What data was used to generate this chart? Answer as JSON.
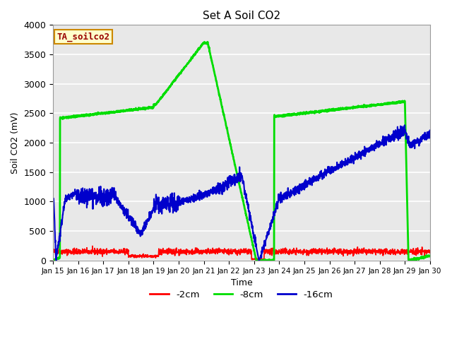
{
  "title": "Set A Soil CO2",
  "xlabel": "Time",
  "ylabel": "Soil CO2 (mV)",
  "ylim": [
    0,
    4000
  ],
  "xlim": [
    0,
    15
  ],
  "xtick_labels": [
    "Jan 15",
    "Jan 16",
    "Jan 17",
    "Jan 18",
    "Jan 19",
    "Jan 20",
    "Jan 21",
    "Jan 22",
    "Jan 23",
    "Jan 24",
    "Jan 25",
    "Jan 26",
    "Jan 27",
    "Jan 28",
    "Jan 29",
    "Jan 30"
  ],
  "ytick_values": [
    0,
    500,
    1000,
    1500,
    2000,
    2500,
    3000,
    3500,
    4000
  ],
  "legend_label": "TA_soilco2",
  "legend_box_color": "#ffffcc",
  "legend_text_color": "#990000",
  "legend_border_color": "#cc8800",
  "bg_color": "#e8e8e8",
  "grid_color": "#ffffff",
  "series_red_label": "-2cm",
  "series_red_color": "#ff0000",
  "series_red_lw": 1.2,
  "series_green_label": "-8cm",
  "series_green_color": "#00dd00",
  "series_green_lw": 2.0,
  "series_blue_label": "-16cm",
  "series_blue_color": "#0000cc",
  "series_blue_lw": 1.5
}
